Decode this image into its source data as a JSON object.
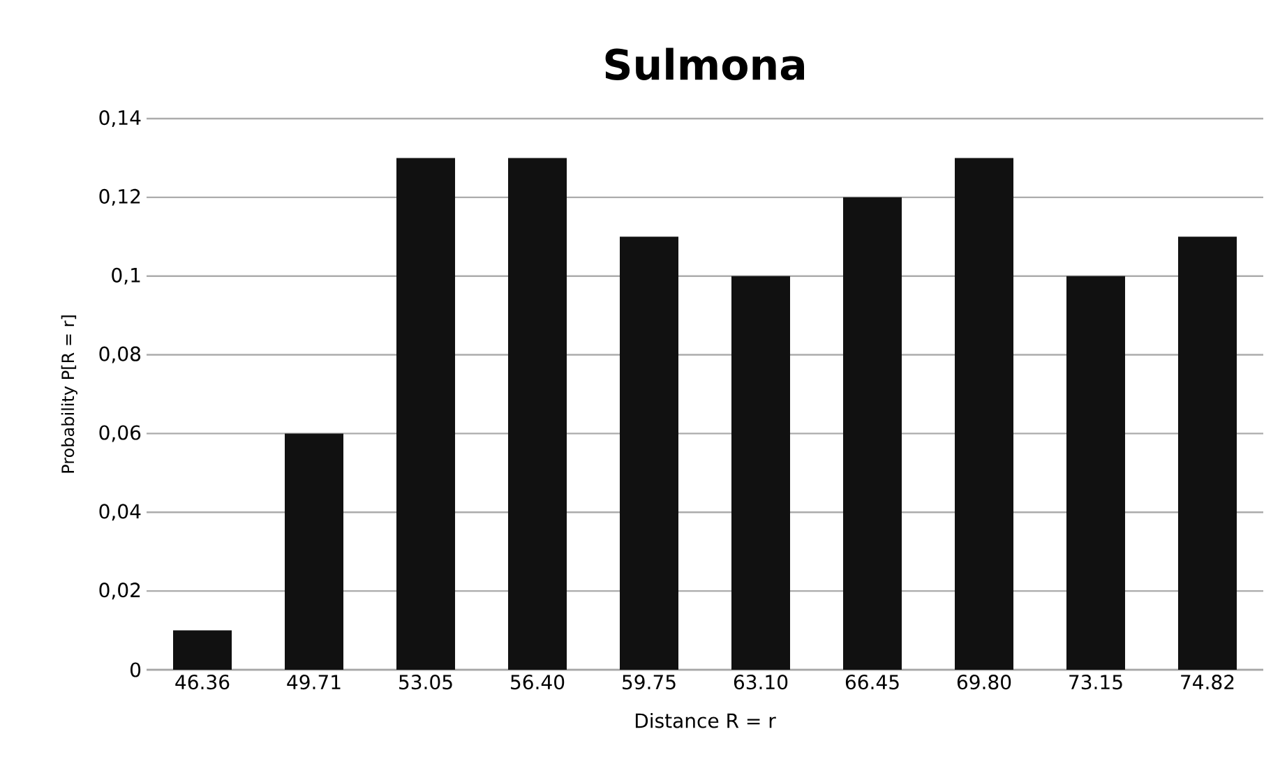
{
  "chart_data": {
    "type": "bar",
    "title": "Sulmona",
    "xlabel": "Distance R = r",
    "ylabel": "Probability P[R = r]",
    "categories": [
      "46.36",
      "49.71",
      "53.05",
      "56.40",
      "59.75",
      "63.10",
      "66.45",
      "69.80",
      "73.15",
      "74.82"
    ],
    "values": [
      0.01,
      0.06,
      0.13,
      0.13,
      0.11,
      0.1,
      0.12,
      0.13,
      0.1,
      0.11
    ],
    "color": "#111111",
    "ylim": [
      0,
      0.14
    ],
    "yticks": [
      0,
      {
        "value": 0.02,
        "label": "0,02"
      },
      {
        "value": 0.04,
        "label": "0,04"
      },
      {
        "value": 0.06,
        "label": "0,06"
      },
      {
        "value": 0.08,
        "label": "0,08"
      },
      {
        "value": 0.1,
        "label": "0,1"
      },
      {
        "value": 0.12,
        "label": "0,12"
      },
      {
        "value": 0.14,
        "label": "0,14"
      }
    ],
    "grid": "y"
  }
}
